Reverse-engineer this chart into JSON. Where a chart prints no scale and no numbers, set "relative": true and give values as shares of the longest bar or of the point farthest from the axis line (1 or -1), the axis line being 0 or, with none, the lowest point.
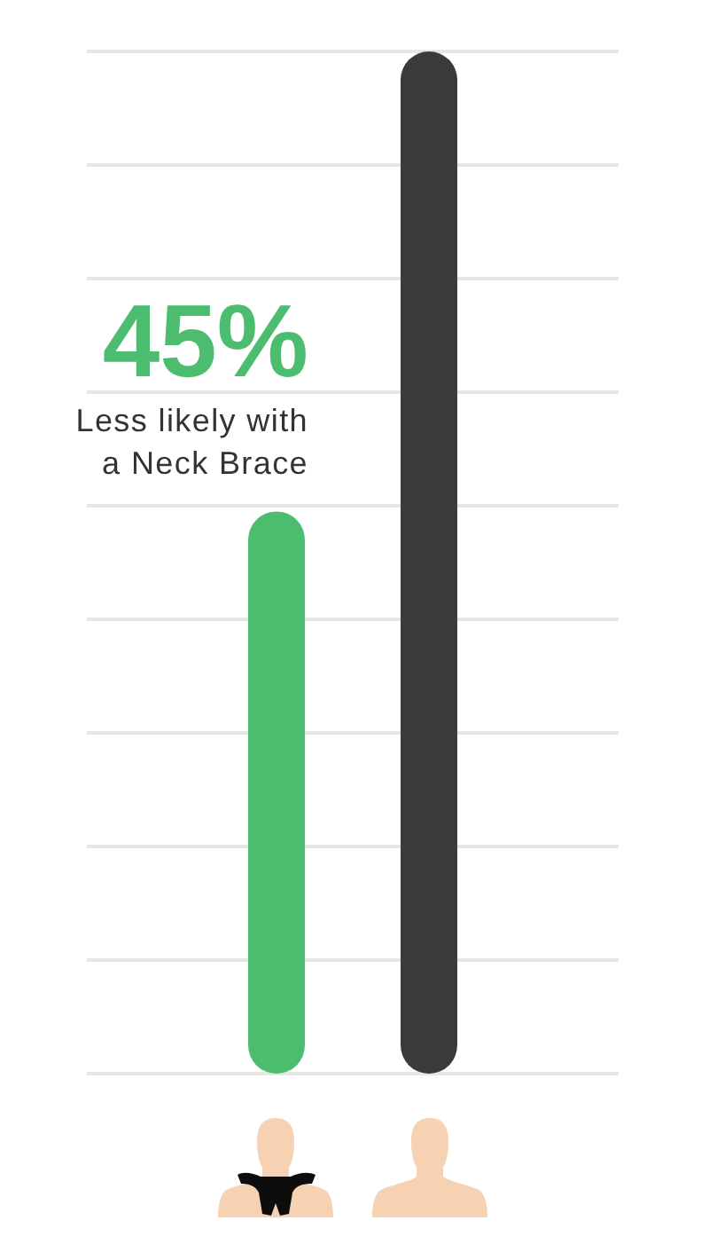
{
  "chart_data": {
    "type": "bar",
    "categories": [
      null,
      null
    ],
    "values": [
      0.55,
      1
    ],
    "colors": [
      "#4cbc6e",
      "#3b3b3b"
    ],
    "relative": true,
    "grid": "y",
    "annotations": [
      "45%",
      "Less likely with a Neck Brace"
    ]
  }
}
